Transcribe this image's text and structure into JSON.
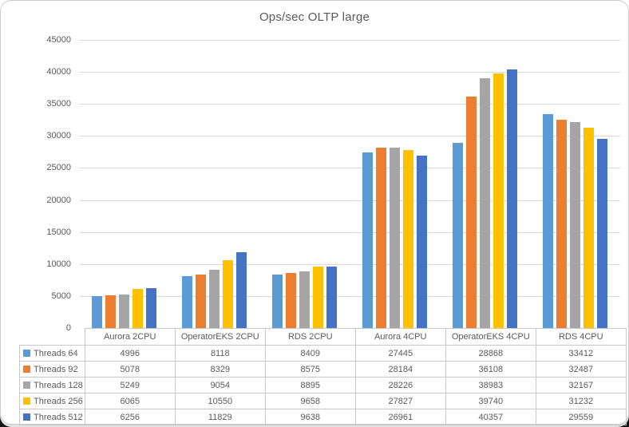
{
  "title": "Ops/sec OLTP large",
  "chart_data": {
    "type": "bar",
    "title": "Ops/sec OLTP large",
    "categories": [
      "Aurora 2CPU",
      "OperatorEKS 2CPU",
      "RDS 2CPU",
      "Aurora 4CPU",
      "OperatorEKS 4CPU",
      "RDS 4CPU"
    ],
    "series": [
      {
        "name": "Threads 64",
        "color": "#5B9BD5",
        "values": [
          4996,
          8118,
          8409,
          27445,
          28868,
          33412
        ]
      },
      {
        "name": "Threads 92",
        "color": "#ED7D31",
        "values": [
          5078,
          8329,
          8575,
          28184,
          36108,
          32487
        ]
      },
      {
        "name": "Threads 128",
        "color": "#A5A5A5",
        "values": [
          5249,
          9054,
          8895,
          28226,
          38983,
          32167
        ]
      },
      {
        "name": "Threads 256",
        "color": "#FFC000",
        "values": [
          6065,
          10550,
          9658,
          27827,
          39740,
          31232
        ]
      },
      {
        "name": "Threads 512",
        "color": "#4472C4",
        "values": [
          6256,
          11829,
          9638,
          26961,
          40357,
          29559
        ]
      }
    ],
    "ylim": [
      0,
      45000
    ],
    "ytick_interval": 5000,
    "yticks": [
      0,
      5000,
      10000,
      15000,
      20000,
      25000,
      30000,
      35000,
      40000,
      45000
    ],
    "grid": true,
    "legend_position": "data-table-left",
    "data_table_shown": true,
    "styles": {
      "text_color": "#595959",
      "gridline_color": "#D9D9D9",
      "table_border_color": "#C8C8C8",
      "background": "#FFFFFF"
    }
  }
}
